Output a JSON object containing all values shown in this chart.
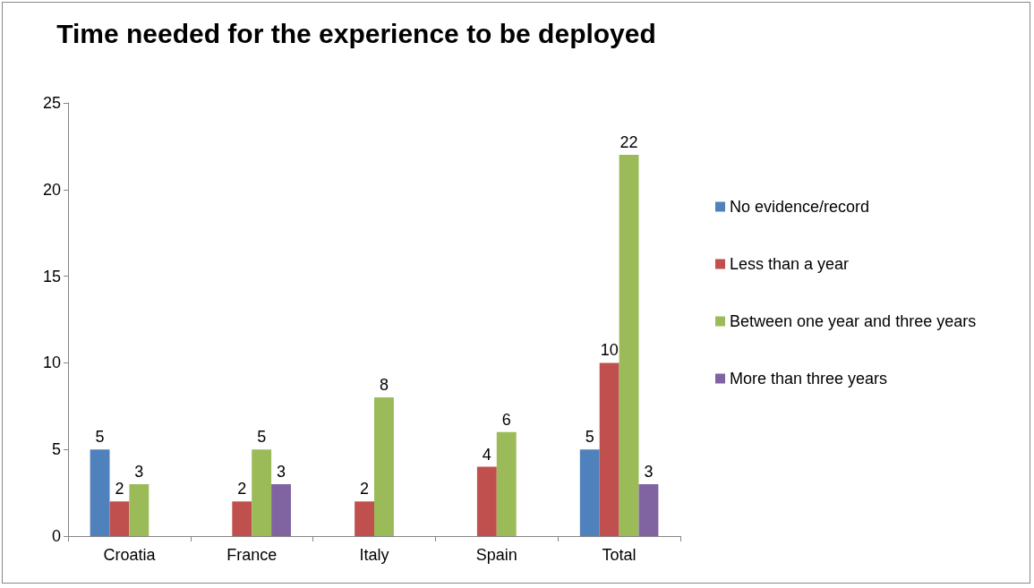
{
  "chart_data": {
    "type": "bar",
    "title": "Time needed for the experience to be deployed",
    "categories": [
      "Croatia",
      "France",
      "Italy",
      "Spain",
      "Total"
    ],
    "series": [
      {
        "name": "No evidence/record",
        "color": "#4f81bd",
        "values": [
          5,
          null,
          null,
          null,
          5
        ]
      },
      {
        "name": "Less than a year",
        "color": "#c0504d",
        "values": [
          2,
          2,
          2,
          4,
          10
        ]
      },
      {
        "name": "Between one year and three years",
        "color": "#9bbb59",
        "values": [
          3,
          5,
          8,
          6,
          22
        ]
      },
      {
        "name": "More than three years",
        "color": "#8064a2",
        "values": [
          null,
          3,
          null,
          null,
          3
        ]
      }
    ],
    "ylim": [
      0,
      25
    ],
    "yticks": [
      0,
      5,
      10,
      15,
      20,
      25
    ],
    "grid": false,
    "legend": "right",
    "data_labels": true
  }
}
